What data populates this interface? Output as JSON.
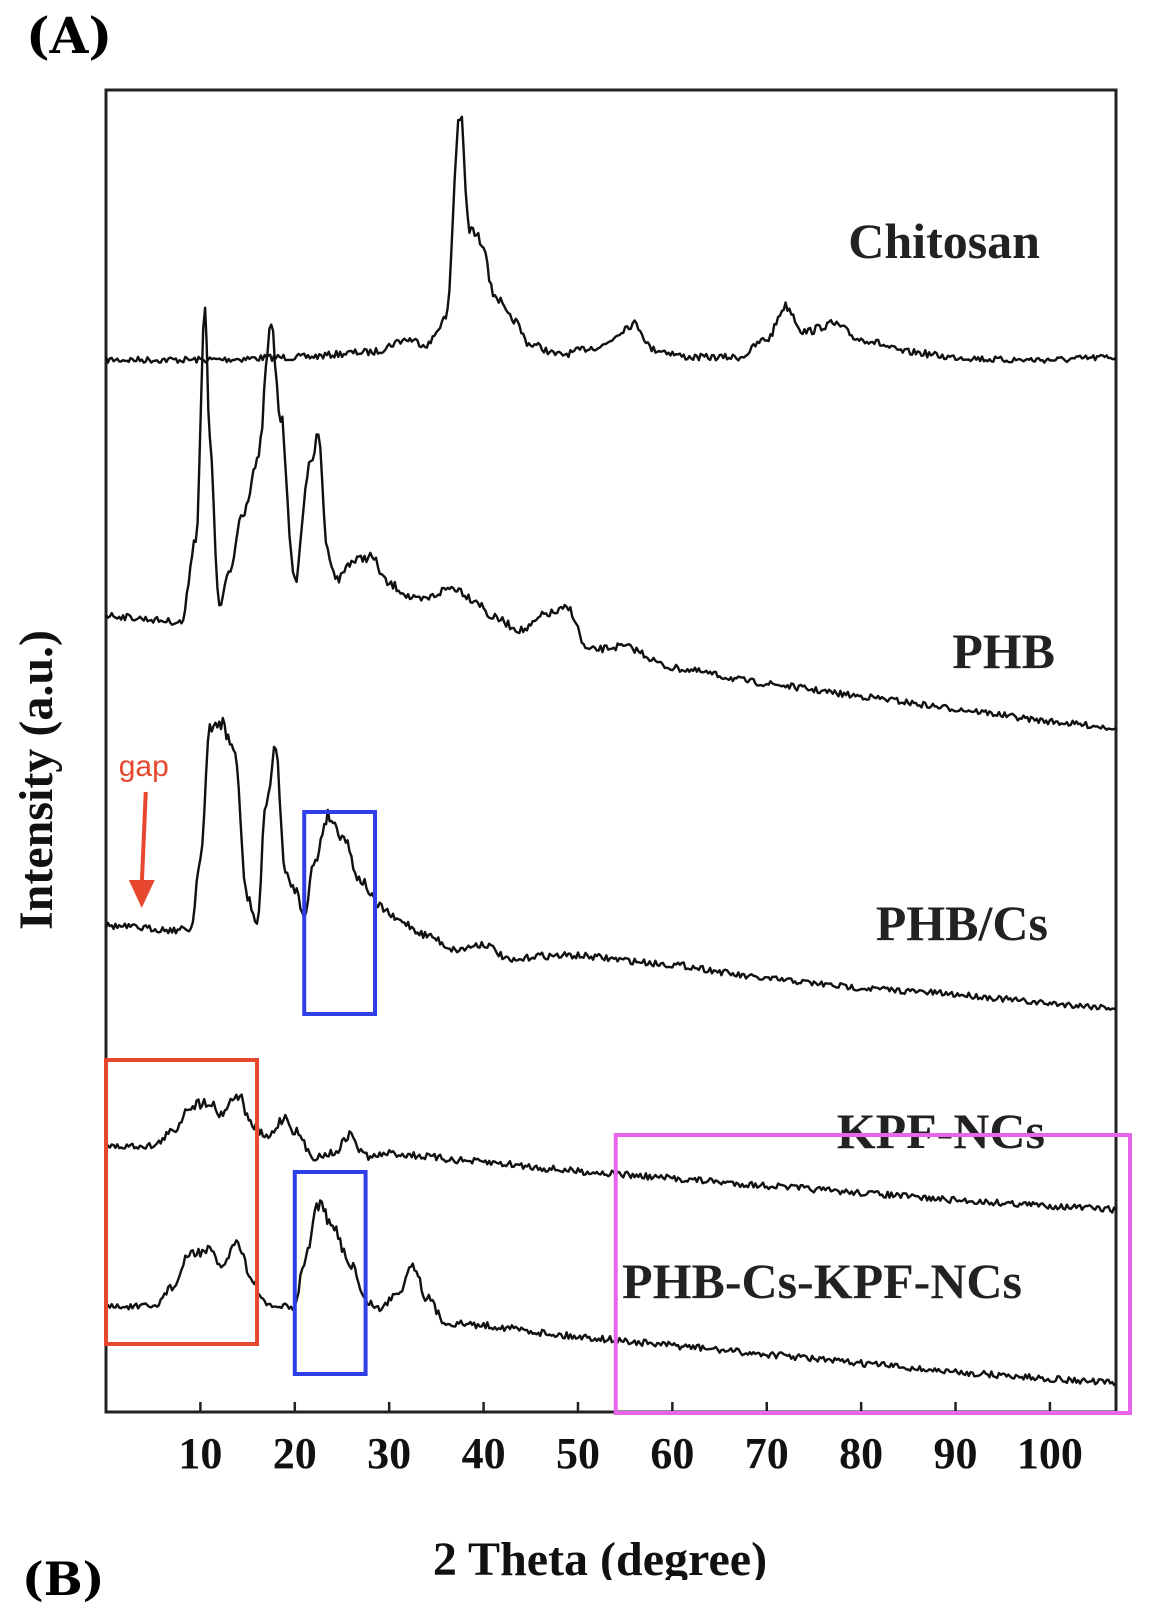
{
  "panel_label": "(A)",
  "bottom_label": "(B)",
  "colors": {
    "trace": "#111111",
    "red_box": "#e8472f",
    "blue_box": "#2f3fe8",
    "magenta_box": "#e864e8",
    "annotation": "#e8472f"
  },
  "chart_data": {
    "type": "line",
    "title": "",
    "xlabel": "2 Theta (degree)",
    "ylabel": "Intensity (a.u.)",
    "xlim": [
      0,
      107
    ],
    "xticks": [
      10,
      20,
      30,
      40,
      50,
      60,
      70,
      80,
      90,
      100
    ],
    "xtick_labels": [
      "10",
      "20",
      "30",
      "40",
      "50",
      "60",
      "70",
      "80",
      "90",
      "100"
    ],
    "grid": false,
    "legend": "none",
    "series": [
      {
        "name": "Chitosan",
        "x": [
          0,
          10,
          20,
          28,
          32,
          34,
          36,
          37.5,
          38.5,
          40,
          41,
          43,
          45,
          48,
          52,
          56,
          58,
          62,
          67,
          70,
          72,
          74,
          77,
          80,
          85,
          90,
          95,
          100,
          107
        ],
        "y": [
          0.04,
          0.04,
          0.05,
          0.07,
          0.12,
          0.1,
          0.2,
          1.0,
          0.55,
          0.5,
          0.3,
          0.2,
          0.1,
          0.06,
          0.09,
          0.18,
          0.08,
          0.05,
          0.05,
          0.12,
          0.25,
          0.15,
          0.18,
          0.12,
          0.07,
          0.05,
          0.04,
          0.04,
          0.05
        ]
      },
      {
        "name": "PHB",
        "x": [
          0,
          8,
          9.5,
          10.5,
          11,
          12,
          13,
          14.5,
          16,
          17.5,
          18.5,
          20,
          21.5,
          22.5,
          23.5,
          24.5,
          26,
          28,
          30,
          33,
          37,
          39,
          41,
          44,
          47,
          49,
          51,
          55,
          60,
          70,
          80,
          90,
          100,
          107
        ],
        "y": [
          0.04,
          0.04,
          0.3,
          1.0,
          0.6,
          0.1,
          0.2,
          0.4,
          0.55,
          0.97,
          0.7,
          0.2,
          0.55,
          0.65,
          0.3,
          0.22,
          0.28,
          0.3,
          0.22,
          0.18,
          0.23,
          0.2,
          0.15,
          0.12,
          0.18,
          0.2,
          0.08,
          0.1,
          0.05,
          0.03,
          0.02,
          0.01,
          0.0,
          0.0
        ]
      },
      {
        "name": "PHB/Cs",
        "x": [
          0,
          5,
          7,
          9,
          10,
          11,
          12,
          13.5,
          15,
          16,
          17,
          18,
          19,
          20,
          21,
          22,
          23.5,
          25,
          27,
          29,
          31,
          34,
          37,
          40,
          43,
          46,
          50,
          60,
          70,
          80,
          90,
          100,
          107
        ],
        "y": [
          0.05,
          0.05,
          0.05,
          0.06,
          0.35,
          0.85,
          0.9,
          0.8,
          0.2,
          0.1,
          0.6,
          0.8,
          0.3,
          0.25,
          0.15,
          0.35,
          0.55,
          0.48,
          0.3,
          0.2,
          0.15,
          0.1,
          0.05,
          0.08,
          0.02,
          0.05,
          0.06,
          0.05,
          0.02,
          0.01,
          0.01,
          0.0,
          0.0
        ]
      },
      {
        "name": "KPF-NCs",
        "x": [
          0,
          5,
          7,
          9,
          11,
          12,
          14,
          15.5,
          17,
          19,
          20,
          22,
          24,
          26,
          27,
          28,
          30,
          40,
          50,
          60,
          70,
          80,
          90,
          100,
          107
        ],
        "y": [
          0.04,
          0.06,
          0.15,
          0.32,
          0.35,
          0.28,
          0.4,
          0.22,
          0.15,
          0.28,
          0.2,
          0.05,
          0.08,
          0.2,
          0.1,
          0.07,
          0.1,
          0.08,
          0.06,
          0.05,
          0.04,
          0.03,
          0.02,
          0.02,
          0.02
        ]
      },
      {
        "name": "PHB-Cs-KPF-NCs",
        "x": [
          0,
          5,
          7,
          9,
          11,
          12,
          14,
          15.5,
          17,
          19,
          20,
          21,
          22.5,
          24,
          26,
          27.5,
          29,
          31,
          32.5,
          34,
          36,
          40,
          50,
          60,
          70,
          80,
          90,
          100,
          107
        ],
        "y": [
          0.05,
          0.06,
          0.15,
          0.3,
          0.32,
          0.25,
          0.36,
          0.2,
          0.1,
          0.1,
          0.1,
          0.3,
          0.55,
          0.45,
          0.3,
          0.15,
          0.12,
          0.2,
          0.32,
          0.18,
          0.08,
          0.08,
          0.06,
          0.05,
          0.04,
          0.03,
          0.02,
          0.02,
          0.02
        ]
      }
    ],
    "annotations": [
      {
        "type": "arrow",
        "text": "gap",
        "x": 4,
        "series": "PHB/Cs",
        "color": "#e8472f"
      },
      {
        "type": "box",
        "color": "#2f3fe8",
        "x_range": [
          21,
          28.5
        ],
        "series": "PHB/Cs"
      },
      {
        "type": "box",
        "color": "#e8472f",
        "x_range": [
          0,
          16
        ],
        "series": [
          "KPF-NCs",
          "PHB-Cs-KPF-NCs"
        ]
      },
      {
        "type": "box",
        "color": "#2f3fe8",
        "x_range": [
          20,
          27.5
        ],
        "series": "PHB-Cs-KPF-NCs"
      },
      {
        "type": "box",
        "color": "#e864e8",
        "x_range": [
          54,
          107
        ],
        "series": [
          "KPF-NCs",
          "PHB-Cs-KPF-NCs"
        ]
      }
    ]
  }
}
